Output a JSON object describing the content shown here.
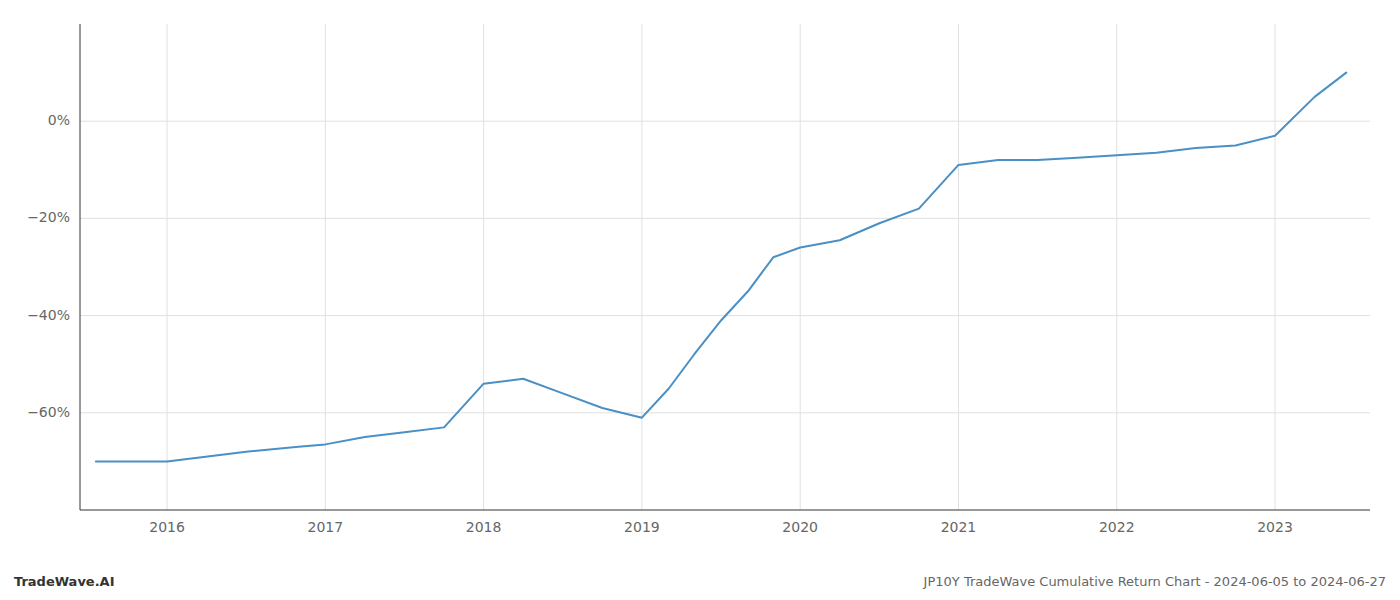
{
  "chart_data": {
    "type": "line",
    "title": "JP10Y TradeWave Cumulative Return Chart - 2024-06-05 to 2024-06-27",
    "annotations": [
      "TradeWave.AI"
    ],
    "x": [
      2015.55,
      2016.0,
      2016.5,
      2016.83,
      2017.0,
      2017.25,
      2017.5,
      2017.75,
      2018.0,
      2018.25,
      2018.5,
      2018.75,
      2019.0,
      2019.17,
      2019.33,
      2019.5,
      2019.67,
      2019.83,
      2020.0,
      2020.25,
      2020.5,
      2020.75,
      2021.0,
      2021.25,
      2021.5,
      2021.75,
      2022.0,
      2022.25,
      2022.5,
      2022.75,
      2023.0,
      2023.25,
      2023.45
    ],
    "values": [
      -70,
      -70,
      -68,
      -67,
      -66.5,
      -65,
      -64,
      -63,
      -54,
      -53,
      -56,
      -59,
      -61,
      -55,
      -48,
      -41,
      -35,
      -28,
      -26,
      -24.5,
      -21,
      -18,
      -9,
      -8,
      -8,
      -7.5,
      -7,
      -6.5,
      -5.5,
      -5,
      -3,
      5,
      10
    ],
    "color": "#4a90c4",
    "xlim": [
      2015.45,
      2023.6
    ],
    "xticks": [
      2016,
      2017,
      2018,
      2019,
      2020,
      2021,
      2022,
      2023
    ],
    "ylim": [
      -80,
      20
    ],
    "yticks": [
      {
        "value": 0,
        "label": "0%"
      },
      {
        "value": -20,
        "label": "−20%"
      },
      {
        "value": -40,
        "label": "−40%"
      },
      {
        "value": -60,
        "label": "−60%"
      }
    ],
    "grid": true
  }
}
